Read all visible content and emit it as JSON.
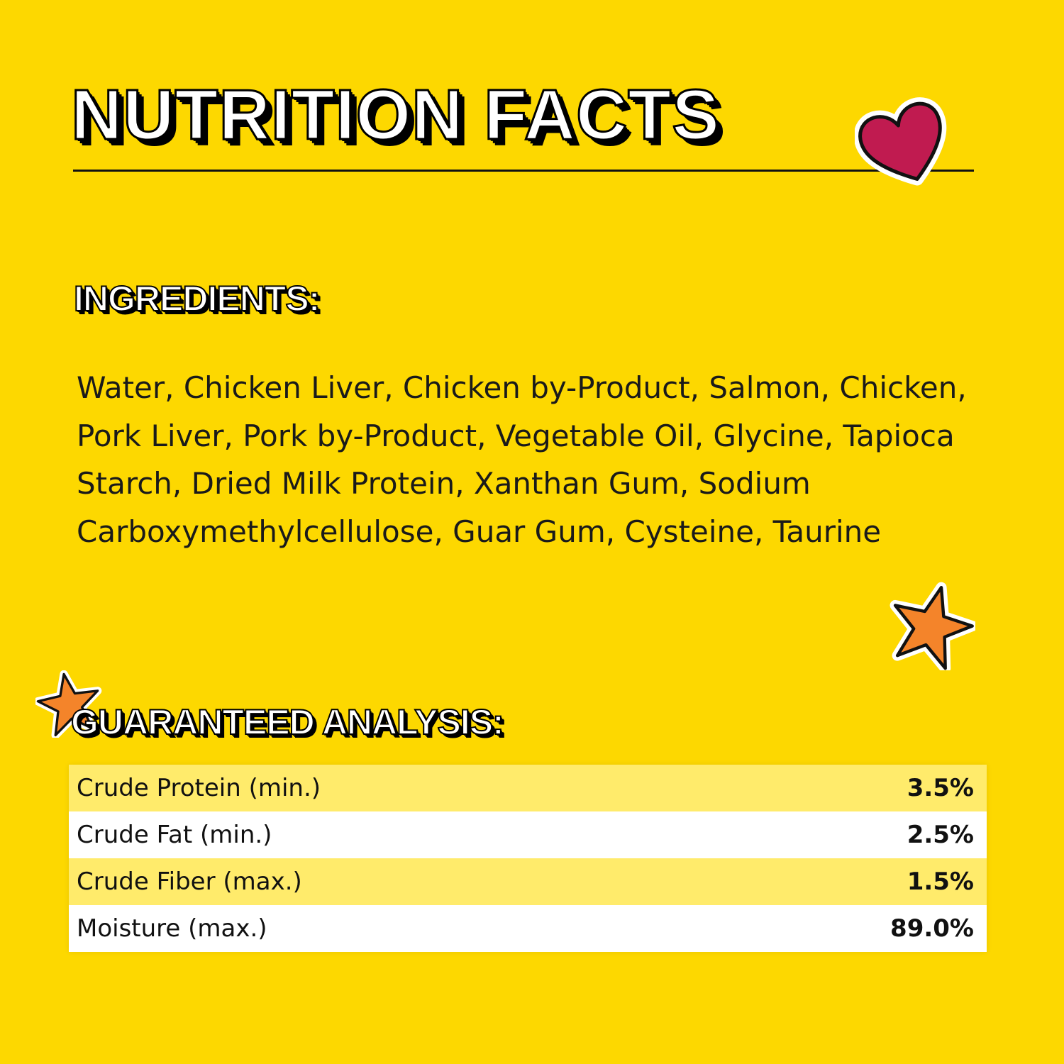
{
  "title": "NUTRITION FACTS",
  "ingredients": {
    "heading": "INGREDIENTS:",
    "text": "Water, Chicken Liver, Chicken by-Product, Salmon, Chicken, Pork Liver, Pork by-Product, Vegetable Oil, Glycine, Tapioca Starch, Dried Milk Protein,  Xanthan Gum, Sodium Carboxymethylcellulose, Guar Gum, Cysteine, Taurine"
  },
  "analysis": {
    "heading": "GUARANTEED ANALYSIS:",
    "rows": [
      {
        "label": "Crude Protein (min.)",
        "value": "3.5%"
      },
      {
        "label": "Crude Fat (min.)",
        "value": "2.5%"
      },
      {
        "label": "Crude Fiber (max.)",
        "value": "1.5%"
      },
      {
        "label": "Moisture (max.)",
        "value": "89.0%"
      }
    ]
  },
  "colors": {
    "background": "#FDD800",
    "heart": "#C01B50",
    "star": "#F4842A",
    "row_alt": "#FFEB6B"
  },
  "icons": [
    "heart-icon",
    "star-icon",
    "star-icon"
  ]
}
